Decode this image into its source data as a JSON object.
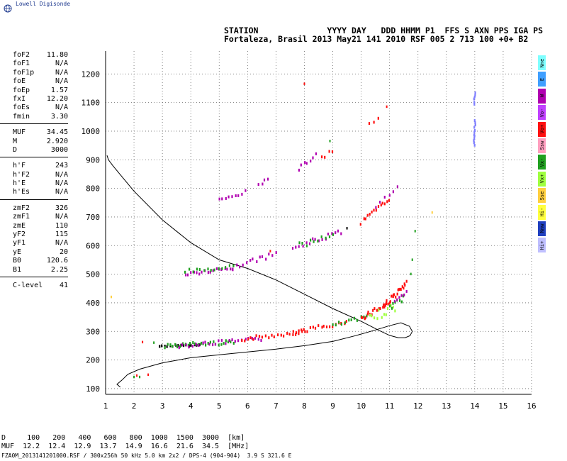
{
  "brand": "Lowell Digisonde",
  "header": {
    "line1": "STATION              YYYY DAY   DDD HHMM P1  FFS S AXN PPS IGA PS",
    "line2": "Fortaleza, Brasil 2013 May21 141 2010 RSF 005 2 713 100 +0+ B2"
  },
  "params": [
    {
      "name": "foF2",
      "value": "11.80"
    },
    {
      "name": "foF1",
      "value": "N/A"
    },
    {
      "name": "foF1p",
      "value": "N/A"
    },
    {
      "name": "foE",
      "value": "N/A"
    },
    {
      "name": "foEp",
      "value": "1.57"
    },
    {
      "name": "fxI",
      "value": "12.20"
    },
    {
      "name": "foEs",
      "value": "N/A"
    },
    {
      "name": "fmin",
      "value": "3.30"
    },
    {
      "sep": true
    },
    {
      "name": "MUF",
      "value": "34.45"
    },
    {
      "name": "M",
      "value": "2.920"
    },
    {
      "name": "D",
      "value": "3000"
    },
    {
      "sep": true
    },
    {
      "name": "h'F",
      "value": "243"
    },
    {
      "name": "h'F2",
      "value": "N/A"
    },
    {
      "name": "h'E",
      "value": "N/A"
    },
    {
      "name": "h'Es",
      "value": "N/A"
    },
    {
      "sep": true
    },
    {
      "name": "zmF2",
      "value": "326"
    },
    {
      "name": "zmF1",
      "value": "N/A"
    },
    {
      "name": "zmE",
      "value": "110"
    },
    {
      "name": "yF2",
      "value": "115"
    },
    {
      "name": "yF1",
      "value": "N/A"
    },
    {
      "name": "yE",
      "value": "20"
    },
    {
      "name": "B0",
      "value": "120.6"
    },
    {
      "name": "B1",
      "value": "2.25"
    },
    {
      "sep": true
    },
    {
      "name": "C-level",
      "value": "41"
    }
  ],
  "legend": [
    {
      "label": "Nne",
      "color": "#7fffff"
    },
    {
      "label": "E",
      "color": "#3f9fff"
    },
    {
      "label": "W",
      "color": "#b000b0"
    },
    {
      "label": "Vo-",
      "color": "#c040ff"
    },
    {
      "label": "Vo+",
      "color": "#ff1010"
    },
    {
      "label": "Ssw",
      "color": "#ff9fbf"
    },
    {
      "label": "Vx-",
      "color": "#20a020"
    },
    {
      "label": "Vx+",
      "color": "#9fff3f"
    },
    {
      "label": "Sse",
      "color": "#ffcf3f"
    },
    {
      "label": "Hi-",
      "color": "#ffff3f"
    },
    {
      "label": "Nnw",
      "color": "#1f3fbf"
    },
    {
      "label": "Hi+",
      "color": "#bfbfff"
    }
  ],
  "muf_table": {
    "line1": "D     100   200   400   600   800  1000  1500  3000  [km]",
    "line2": "MUF  12.2  12.4  12.9  13.7  14.9  16.6  21.6  34.5  [MHz]"
  },
  "footer": "FZA0M_2013141201000.RSF / 300x256h 50 kHz 5.0 km 2x2 / DPS-4 (904-904)  3.9 S 321.6 E",
  "chart_data": {
    "type": "scatter",
    "xlim": [
      1,
      16
    ],
    "ylim": [
      80,
      1280
    ],
    "xticks": [
      1,
      2,
      3,
      4,
      5,
      6,
      7,
      8,
      9,
      10,
      11,
      12,
      13,
      14,
      15,
      16
    ],
    "yticks": [
      100,
      200,
      300,
      400,
      500,
      600,
      700,
      800,
      900,
      1000,
      1100,
      1200
    ],
    "grid": true,
    "profile": {
      "x": [
        1.52,
        1.4,
        1.58,
        1.78,
        2.2,
        3.0,
        4.0,
        5.0,
        6.0,
        7.0,
        8.0,
        9.0,
        9.8,
        10.5,
        11.0,
        11.4,
        11.7,
        11.8,
        11.72,
        11.55,
        11.3,
        11.0,
        10.6,
        10.0,
        9.0,
        8.0,
        7.0,
        6.0,
        5.0,
        4.0,
        3.0,
        2.0,
        1.5,
        1.25,
        1.1,
        1.05
      ],
      "y": [
        105,
        115,
        130,
        150,
        168,
        190,
        208,
        218,
        228,
        238,
        250,
        265,
        285,
        305,
        320,
        330,
        318,
        300,
        285,
        278,
        278,
        286,
        305,
        335,
        380,
        430,
        480,
        520,
        550,
        610,
        690,
        790,
        850,
        880,
        900,
        915
      ]
    },
    "traces": [
      {
        "x0": 2.9,
        "x1": 4.3,
        "y0": 248,
        "y1": 252,
        "color": "#000000",
        "n": 16,
        "spread": 1
      },
      {
        "x0": 3.1,
        "x1": 5.5,
        "y0": 250,
        "y1": 262,
        "color": "#20a020",
        "n": 28,
        "spread": 3
      },
      {
        "x0": 3.6,
        "x1": 6.5,
        "y0": 250,
        "y1": 272,
        "color": "#b000b0",
        "n": 26,
        "spread": 3
      },
      {
        "x0": 5.8,
        "x1": 8.0,
        "y0": 272,
        "y1": 300,
        "color": "#ff1010",
        "n": 22,
        "spread": 3
      },
      {
        "x0": 7.6,
        "x1": 9.5,
        "y0": 298,
        "y1": 330,
        "color": "#ff1010",
        "n": 20,
        "spread": 3
      },
      {
        "x0": 9.0,
        "x1": 10.2,
        "y0": 320,
        "y1": 350,
        "color": "#20a020",
        "n": 12,
        "spread": 3
      },
      {
        "x0": 10.0,
        "x1": 10.9,
        "y0": 348,
        "y1": 395,
        "color": "#ff1010",
        "n": 18,
        "spread": 4
      },
      {
        "x0": 10.8,
        "x1": 11.6,
        "y0": 390,
        "y1": 465,
        "color": "#ff1010",
        "n": 22,
        "spread": 4
      },
      {
        "x0": 10.3,
        "x1": 11.2,
        "y0": 345,
        "y1": 385,
        "color": "#9fff3f",
        "n": 12,
        "spread": 6
      },
      {
        "x0": 11.0,
        "x1": 11.5,
        "y0": 380,
        "y1": 420,
        "color": "#20a020",
        "n": 8,
        "spread": 5
      },
      {
        "x0": 11.2,
        "x1": 11.6,
        "y0": 400,
        "y1": 440,
        "color": "#b000b0",
        "n": 6,
        "spread": 3
      },
      {
        "x0": 3.8,
        "x1": 5.5,
        "y0": 500,
        "y1": 520,
        "color": "#b000b0",
        "n": 18,
        "spread": 3
      },
      {
        "x0": 3.8,
        "x1": 5.5,
        "y0": 510,
        "y1": 525,
        "color": "#20a020",
        "n": 14,
        "spread": 3
      },
      {
        "x0": 5.5,
        "x1": 7.0,
        "y0": 525,
        "y1": 570,
        "color": "#b000b0",
        "n": 14,
        "spread": 3
      },
      {
        "x0": 7.6,
        "x1": 9.3,
        "y0": 590,
        "y1": 650,
        "color": "#b000b0",
        "n": 16,
        "spread": 4
      },
      {
        "x0": 7.8,
        "x1": 9.0,
        "y0": 600,
        "y1": 640,
        "color": "#20a020",
        "n": 10,
        "spread": 4
      },
      {
        "x0": 10.0,
        "x1": 11.0,
        "y0": 680,
        "y1": 760,
        "color": "#ff1010",
        "n": 14,
        "spread": 4
      },
      {
        "x0": 10.5,
        "x1": 11.3,
        "y0": 740,
        "y1": 800,
        "color": "#b000b0",
        "n": 6,
        "spread": 3
      },
      {
        "x0": 5.0,
        "x1": 5.9,
        "y0": 765,
        "y1": 785,
        "color": "#b000b0",
        "n": 9,
        "spread": 3
      },
      {
        "x0": 6.4,
        "x1": 6.7,
        "y0": 815,
        "y1": 830,
        "color": "#b000b0",
        "n": 4,
        "spread": 2
      },
      {
        "x0": 7.8,
        "x1": 8.4,
        "y0": 870,
        "y1": 915,
        "color": "#b000b0",
        "n": 7,
        "spread": 3
      },
      {
        "x0": 8.6,
        "x1": 9.0,
        "y0": 905,
        "y1": 930,
        "color": "#ff1010",
        "n": 4,
        "spread": 3
      },
      {
        "x0": 10.3,
        "x1": 10.6,
        "y0": 1025,
        "y1": 1045,
        "color": "#ff1010",
        "n": 3,
        "spread": 2
      },
      {
        "x0": 13.98,
        "x1": 14.0,
        "y0": 950,
        "y1": 1035,
        "color": "#7f7fff",
        "n": 12,
        "spread": 1
      },
      {
        "x0": 13.98,
        "x1": 14.0,
        "y0": 1095,
        "y1": 1135,
        "color": "#7f7fff",
        "n": 6,
        "spread": 1
      }
    ],
    "points": [
      {
        "x": 1.2,
        "y": 420,
        "color": "#ffcf3f"
      },
      {
        "x": 2.0,
        "y": 140,
        "color": "#20a020"
      },
      {
        "x": 2.1,
        "y": 145,
        "color": "#ff1010"
      },
      {
        "x": 2.2,
        "y": 140,
        "color": "#20a020"
      },
      {
        "x": 2.5,
        "y": 148,
        "color": "#ff1010"
      },
      {
        "x": 2.3,
        "y": 262,
        "color": "#ff1010"
      },
      {
        "x": 2.7,
        "y": 260,
        "color": "#20a020"
      },
      {
        "x": 8.0,
        "y": 1165,
        "color": "#ff1010"
      },
      {
        "x": 10.9,
        "y": 1085,
        "color": "#ff1010"
      },
      {
        "x": 8.9,
        "y": 965,
        "color": "#20a020"
      },
      {
        "x": 12.5,
        "y": 715,
        "color": "#ffcf3f"
      },
      {
        "x": 11.9,
        "y": 650,
        "color": "#20a020"
      },
      {
        "x": 11.8,
        "y": 550,
        "color": "#20a020"
      },
      {
        "x": 11.75,
        "y": 500,
        "color": "#20a020"
      },
      {
        "x": 9.5,
        "y": 660,
        "color": "#000000"
      },
      {
        "x": 6.8,
        "y": 580,
        "color": "#ff1010"
      }
    ]
  }
}
